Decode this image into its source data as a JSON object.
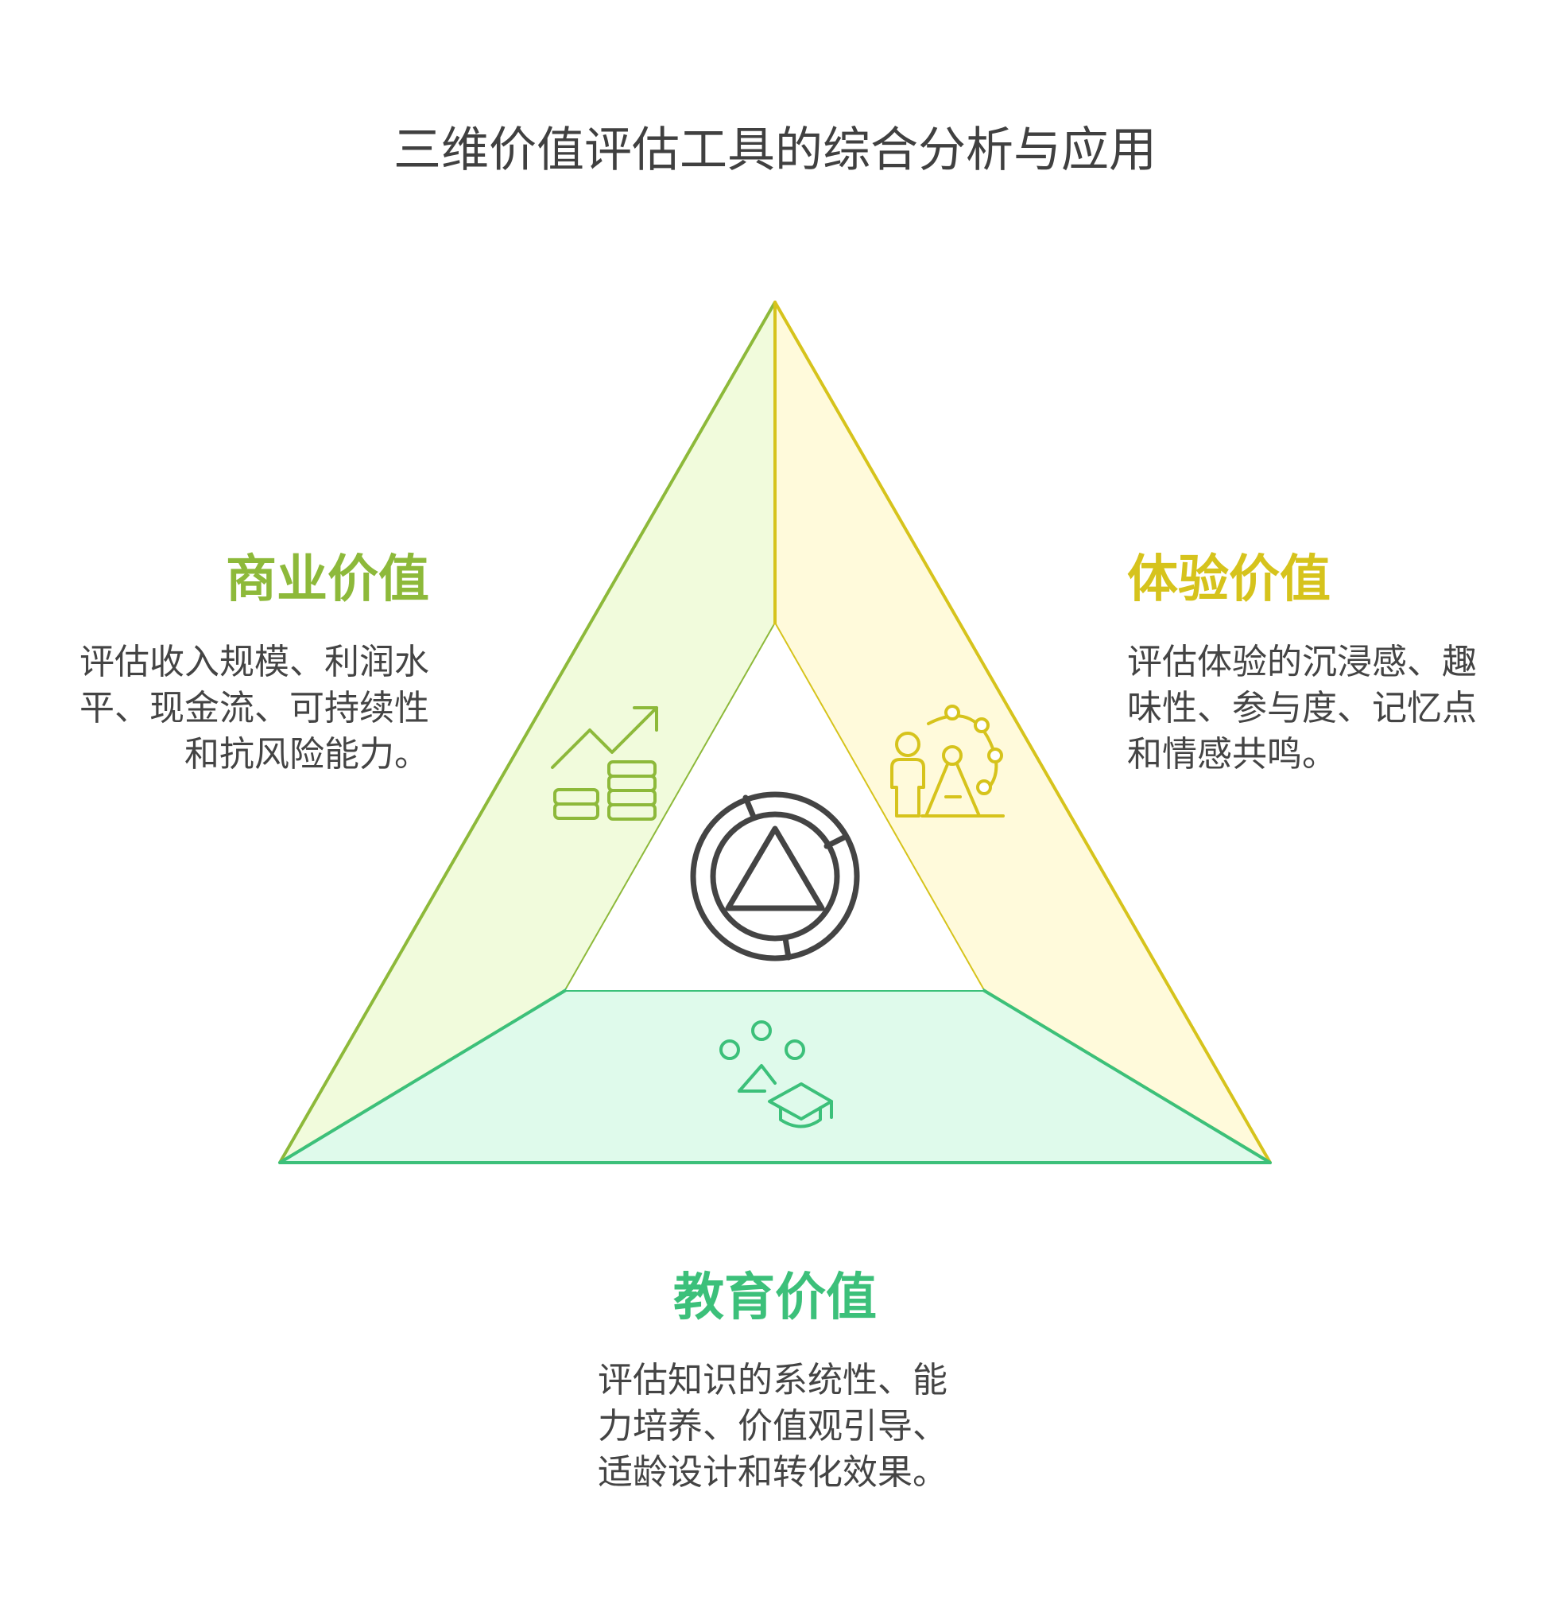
{
  "title": "三维价值评估工具的综合分析与应用",
  "colors": {
    "business": "#8db93a",
    "business_fill": "#f1fbdc",
    "experience": "#d6c31c",
    "experience_fill": "#fffadb",
    "education": "#3cc07a",
    "education_fill": "#dffaeb",
    "center_icon": "#444444"
  },
  "sections": {
    "business": {
      "title": "商业价值",
      "lines": [
        "评估收入规模、利润水",
        "平、现金流、可持续性",
        "和抗风险能力。"
      ],
      "icon": "growth-chart-coins-icon"
    },
    "experience": {
      "title": "体验价值",
      "lines": [
        "评估体验的沉浸感、趣",
        "味性、参与度、记忆点",
        "和情感共鸣。"
      ],
      "icon": "person-experience-icon"
    },
    "education": {
      "title": "教育价值",
      "lines": [
        "评估知识的系统性、能",
        "力培养、价值观引导、",
        "适龄设计和转化效果。"
      ],
      "icon": "graduation-cap-icon"
    }
  },
  "center": {
    "icon": "triangle-in-circle-icon"
  }
}
